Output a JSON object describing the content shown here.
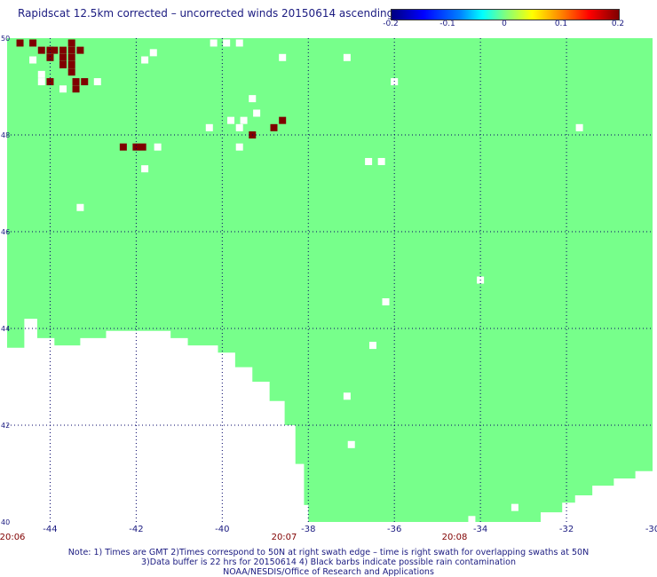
{
  "title": "Rapidscat 12.5km corrected – uncorrected winds 20150614 ascending",
  "colorbar": {
    "labels": [
      "-0.2",
      "-0.1",
      "0",
      "0.1",
      "0.2"
    ],
    "stops": [
      "#00007f",
      "#0000ff",
      "#0080ff",
      "#00ffff",
      "#7fff7f",
      "#ffff00",
      "#ff8000",
      "#ff0000",
      "#7f0000"
    ]
  },
  "map": {
    "lon_range": [
      -45,
      -30
    ],
    "lat_range": [
      40,
      50
    ],
    "lon_ticks": [
      "-44",
      "-42",
      "-40",
      "-38",
      "-36",
      "-34",
      "-32",
      "-30"
    ],
    "lat_ticks": [
      "50",
      "48",
      "46",
      "44",
      "42",
      "40"
    ],
    "time_labels": [
      "20:06",
      "20:07",
      "20:08"
    ],
    "colors": {
      "field": "#77ff8b",
      "positive": "#7f0000",
      "grid": "#000066",
      "time": "#800000",
      "axis": "#1a1a80"
    },
    "positive_points": [
      [
        -44.7,
        49.9
      ],
      [
        -44.4,
        49.9
      ],
      [
        -44.2,
        49.75
      ],
      [
        -44.0,
        49.75
      ],
      [
        -43.9,
        49.75
      ],
      [
        -43.7,
        49.75
      ],
      [
        -43.5,
        49.75
      ],
      [
        -43.3,
        49.75
      ],
      [
        -43.5,
        49.9
      ],
      [
        -44.0,
        49.6
      ],
      [
        -43.7,
        49.6
      ],
      [
        -43.5,
        49.6
      ],
      [
        -43.7,
        49.45
      ],
      [
        -43.5,
        49.45
      ],
      [
        -43.5,
        49.3
      ],
      [
        -44.0,
        49.1
      ],
      [
        -43.4,
        49.1
      ],
      [
        -43.2,
        49.1
      ],
      [
        -43.4,
        48.95
      ],
      [
        -42.3,
        47.75
      ],
      [
        -42.0,
        47.75
      ],
      [
        -41.85,
        47.75
      ],
      [
        -38.6,
        48.3
      ],
      [
        -38.8,
        48.15
      ],
      [
        -39.3,
        48.0
      ]
    ],
    "missing_points": [
      [
        -40.2,
        49.9
      ],
      [
        -39.9,
        49.9
      ],
      [
        -39.6,
        49.9
      ],
      [
        -41.6,
        49.7
      ],
      [
        -41.8,
        49.55
      ],
      [
        -38.6,
        49.6
      ],
      [
        -37.1,
        49.6
      ],
      [
        -44.4,
        49.55
      ],
      [
        -44.2,
        49.25
      ],
      [
        -44.2,
        49.1
      ],
      [
        -42.9,
        49.1
      ],
      [
        -43.7,
        48.95
      ],
      [
        -36.0,
        49.1
      ],
      [
        -39.3,
        48.75
      ],
      [
        -39.2,
        48.45
      ],
      [
        -39.8,
        48.3
      ],
      [
        -39.5,
        48.3
      ],
      [
        -39.6,
        48.15
      ],
      [
        -40.3,
        48.15
      ],
      [
        -31.7,
        48.15
      ],
      [
        -39.6,
        47.75
      ],
      [
        -41.5,
        47.75
      ],
      [
        -41.8,
        47.3
      ],
      [
        -36.6,
        47.45
      ],
      [
        -36.3,
        47.45
      ],
      [
        -43.3,
        46.5
      ],
      [
        -34.0,
        45.0
      ],
      [
        -36.2,
        44.55
      ],
      [
        -36.5,
        43.65
      ],
      [
        -37.1,
        42.6
      ],
      [
        -39.5,
        42.6
      ],
      [
        -37.0,
        41.6
      ],
      [
        -33.2,
        40.3
      ],
      [
        -34.2,
        40.05
      ]
    ],
    "coast_bottom": [
      [
        -45.0,
        43.6
      ],
      [
        -44.6,
        43.6
      ],
      [
        -44.6,
        44.2
      ],
      [
        -44.3,
        44.2
      ],
      [
        -44.3,
        43.8
      ],
      [
        -43.9,
        43.8
      ],
      [
        -43.9,
        43.65
      ],
      [
        -43.3,
        43.65
      ],
      [
        -43.3,
        43.8
      ],
      [
        -42.7,
        43.8
      ],
      [
        -42.7,
        43.95
      ],
      [
        -41.9,
        43.95
      ],
      [
        -41.2,
        43.95
      ],
      [
        -41.2,
        43.8
      ],
      [
        -40.8,
        43.8
      ],
      [
        -40.8,
        43.65
      ],
      [
        -40.1,
        43.65
      ],
      [
        -40.1,
        43.5
      ],
      [
        -39.7,
        43.5
      ],
      [
        -39.7,
        43.2
      ],
      [
        -39.3,
        43.2
      ],
      [
        -39.3,
        42.9
      ],
      [
        -38.9,
        42.9
      ],
      [
        -38.9,
        42.5
      ],
      [
        -38.55,
        42.5
      ],
      [
        -38.55,
        42.0
      ],
      [
        -38.3,
        42.0
      ],
      [
        -38.3,
        41.2
      ],
      [
        -38.1,
        41.2
      ],
      [
        -38.1,
        40.35
      ],
      [
        -38.0,
        40.35
      ],
      [
        -38.0,
        40.0
      ],
      [
        -45.0,
        40.0
      ]
    ],
    "coast_right": [
      [
        -30.0,
        41.05
      ],
      [
        -30.4,
        41.05
      ],
      [
        -30.4,
        40.9
      ],
      [
        -30.9,
        40.9
      ],
      [
        -30.9,
        40.75
      ],
      [
        -31.4,
        40.75
      ],
      [
        -31.4,
        40.55
      ],
      [
        -31.8,
        40.55
      ],
      [
        -31.8,
        40.4
      ],
      [
        -32.1,
        40.4
      ],
      [
        -32.1,
        40.2
      ],
      [
        -32.6,
        40.2
      ],
      [
        -32.6,
        40.0
      ],
      [
        -30.0,
        40.0
      ]
    ]
  },
  "footer": {
    "line1": "Note: 1) Times are GMT 2)Times correspond to 50N at right swath edge – time is right swath for overlapping swaths at 50N",
    "line2": "3)Data buffer is 22 hrs for 20150614 4) Black barbs indicate possible rain contamination",
    "line3": "NOAA/NESDIS/Office of Research and Applications"
  }
}
